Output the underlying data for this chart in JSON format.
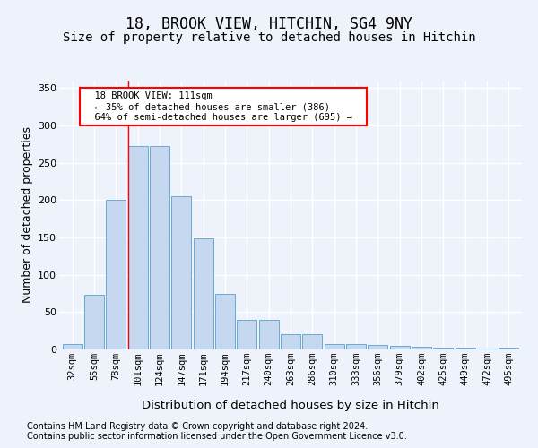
{
  "title": "18, BROOK VIEW, HITCHIN, SG4 9NY",
  "subtitle": "Size of property relative to detached houses in Hitchin",
  "xlabel": "Distribution of detached houses by size in Hitchin",
  "ylabel": "Number of detached properties",
  "bin_labels": [
    "32sqm",
    "55sqm",
    "78sqm",
    "101sqm",
    "124sqm",
    "147sqm",
    "171sqm",
    "194sqm",
    "217sqm",
    "240sqm",
    "263sqm",
    "286sqm",
    "310sqm",
    "333sqm",
    "356sqm",
    "379sqm",
    "402sqm",
    "425sqm",
    "449sqm",
    "472sqm",
    "495sqm"
  ],
  "bar_heights": [
    7,
    73,
    201,
    272,
    272,
    205,
    149,
    75,
    40,
    40,
    20,
    20,
    7,
    7,
    6,
    5,
    4,
    3,
    2,
    1,
    3
  ],
  "bar_color": "#c5d8f0",
  "bar_edgecolor": "#6aaad4",
  "red_line_bin_index": 3,
  "annotation_title": "18 BROOK VIEW: 111sqm",
  "annotation_line1": "← 35% of detached houses are smaller (386)",
  "annotation_line2": "64% of semi-detached houses are larger (695) →",
  "ylim": [
    0,
    360
  ],
  "yticks": [
    0,
    50,
    100,
    150,
    200,
    250,
    300,
    350
  ],
  "footer_line1": "Contains HM Land Registry data © Crown copyright and database right 2024.",
  "footer_line2": "Contains public sector information licensed under the Open Government Licence v3.0.",
  "background_color": "#eef2fa",
  "grid_color": "#ffffff",
  "title_fontsize": 12,
  "subtitle_fontsize": 10,
  "axis_label_fontsize": 9,
  "tick_fontsize": 7.5,
  "footer_fontsize": 7
}
